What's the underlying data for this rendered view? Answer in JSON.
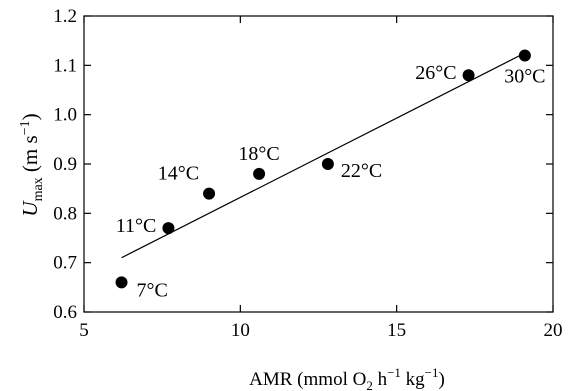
{
  "chart_data": {
    "type": "scatter",
    "x_axis": {
      "label_prefix": "AMR (mmol O",
      "label_o2_sub": "2",
      "label_h": " h",
      "label_h_sup": "−1",
      "label_kg": " kg",
      "label_kg_sup": "−1",
      "label_close": ")",
      "range": [
        5,
        20
      ],
      "ticks": [
        5,
        10,
        15,
        20
      ],
      "tick_labels": [
        "5",
        "10",
        "15",
        "20"
      ]
    },
    "y_axis": {
      "label_var": "U",
      "label_sub": "max",
      "label_unit": " (m s",
      "label_sup": "−1",
      "label_close": ")",
      "range": [
        0.6,
        1.2
      ],
      "ticks": [
        0.6,
        0.7,
        0.8,
        0.9,
        1.0,
        1.1,
        1.2
      ],
      "tick_labels": [
        "0.6",
        "0.7",
        "0.8",
        "0.9",
        "1.0",
        "1.1",
        "1.2"
      ]
    },
    "points": [
      {
        "label": "7°C",
        "x": 6.2,
        "y": 0.66
      },
      {
        "label": "11°C",
        "x": 7.7,
        "y": 0.77
      },
      {
        "label": "14°C",
        "x": 9.0,
        "y": 0.84
      },
      {
        "label": "18°C",
        "x": 10.6,
        "y": 0.88
      },
      {
        "label": "22°C",
        "x": 12.8,
        "y": 0.9
      },
      {
        "label": "26°C",
        "x": 17.3,
        "y": 1.08
      },
      {
        "label": "30°C",
        "x": 19.1,
        "y": 1.12
      }
    ],
    "trendline": {
      "x": [
        6.2,
        19.1
      ],
      "y": [
        0.71,
        1.125
      ]
    },
    "grid": false,
    "legend": "none"
  }
}
